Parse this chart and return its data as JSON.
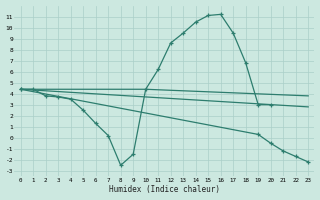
{
  "bg_color": "#cce8e0",
  "line_color": "#2d7d6e",
  "grid_color": "#aacfc8",
  "xlabel": "Humidex (Indice chaleur)",
  "xlim": [
    -0.5,
    23.5
  ],
  "ylim": [
    -3.5,
    12.0
  ],
  "xticks": [
    0,
    1,
    2,
    3,
    4,
    5,
    6,
    7,
    8,
    9,
    10,
    11,
    12,
    13,
    14,
    15,
    16,
    17,
    18,
    19,
    20,
    21,
    22,
    23
  ],
  "yticks": [
    -3,
    -2,
    -1,
    0,
    1,
    2,
    3,
    4,
    5,
    6,
    7,
    8,
    9,
    10,
    11
  ],
  "series": [
    {
      "x": [
        0,
        1,
        2,
        3,
        4,
        5,
        6,
        7,
        8,
        9,
        10,
        11,
        12,
        13,
        14,
        15,
        16,
        17,
        18,
        19,
        20,
        21,
        22,
        23
      ],
      "y": [
        4.4,
        4.4,
        3.8,
        3.7,
        3.5,
        2.5,
        1.3,
        0.2,
        -2.5,
        -1.5,
        4.4,
        6.2,
        8.6,
        9.5,
        10.5,
        11.1,
        11.2,
        9.5,
        6.8,
        3.0,
        3.0,
        null,
        null,
        null
      ],
      "marker": true,
      "linewidth": 0.9
    },
    {
      "x": [
        0,
        10,
        23
      ],
      "y": [
        4.4,
        4.4,
        3.8
      ],
      "marker": false,
      "linewidth": 0.9
    },
    {
      "x": [
        0,
        23
      ],
      "y": [
        4.4,
        2.8
      ],
      "marker": false,
      "linewidth": 0.9
    },
    {
      "x": [
        0,
        19,
        20,
        21,
        22,
        23
      ],
      "y": [
        4.4,
        0.3,
        -0.5,
        -1.2,
        -1.7,
        -2.2
      ],
      "marker": true,
      "linewidth": 0.9
    }
  ]
}
